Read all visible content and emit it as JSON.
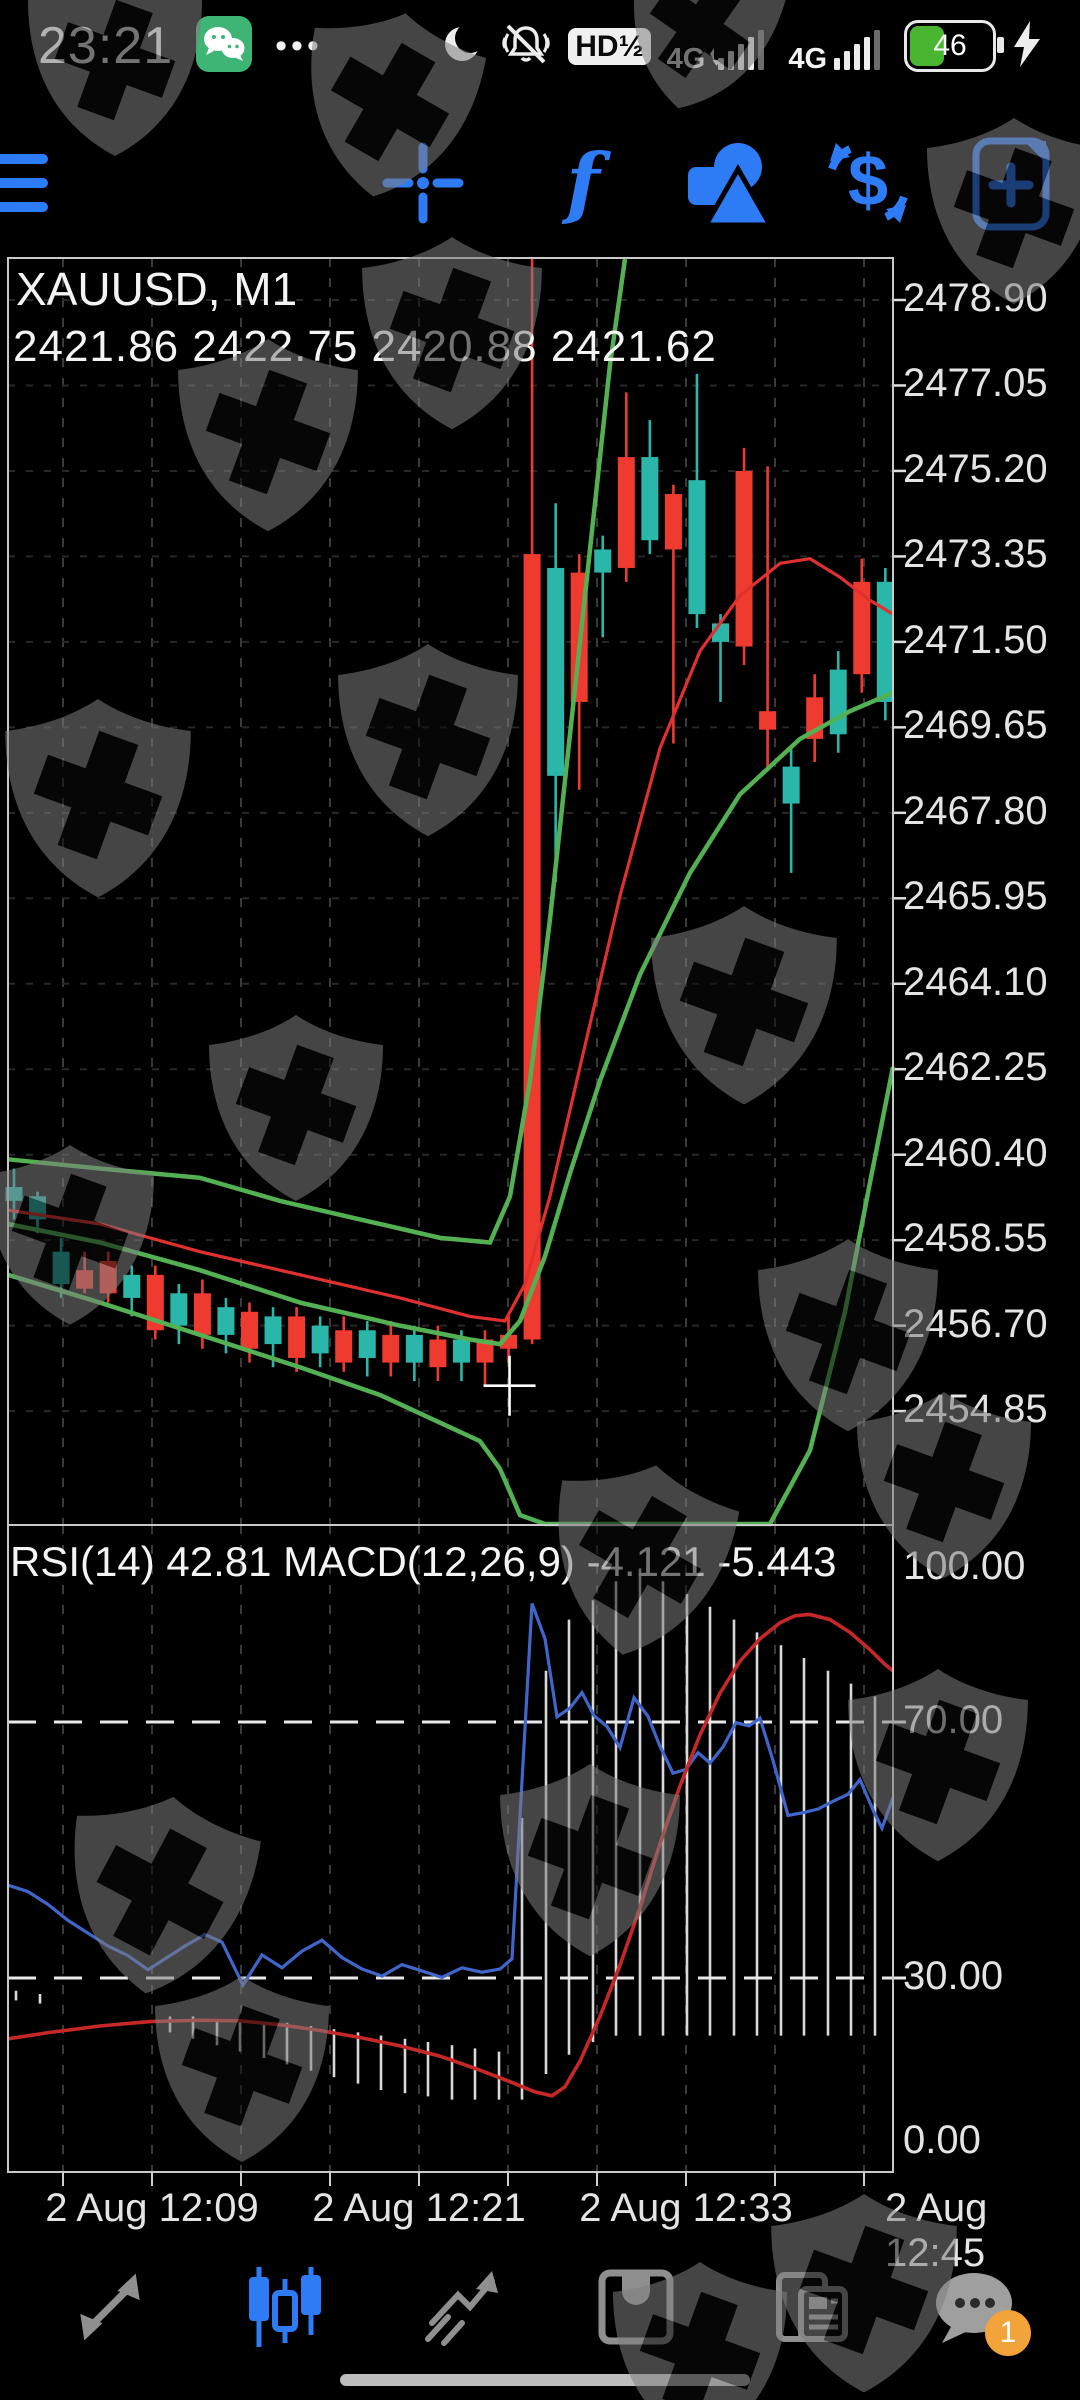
{
  "status_bar": {
    "time": "23:21",
    "dots": "•••",
    "hd_label": "HD½",
    "network": "4G",
    "network2": "4G",
    "battery_percent": "46",
    "icons": [
      "wechat-icon",
      "more-notifications-icon",
      "moon-icon",
      "mute-vibrate-icon",
      "hd-voice-icon",
      "signal-bars-icon",
      "signal-bars-icon",
      "battery-icon",
      "charging-bolt-icon"
    ]
  },
  "toolbar": {
    "icons": [
      "menu-icon",
      "crosshair-icon",
      "indicators-function-icon",
      "objects-icon",
      "currency-trade-icon",
      "new-chart-window-icon"
    ],
    "accent": "#2e7bf6"
  },
  "chart": {
    "symbol": "XAUUSD, M1",
    "ohlc_line": "2421.86 2422.75 2420.88 2421.62",
    "price_axis": [
      "2478.90",
      "2477.05",
      "2475.20",
      "2473.35",
      "2471.50",
      "2469.65",
      "2467.80",
      "2465.95",
      "2464.10",
      "2462.25",
      "2460.40",
      "2458.55",
      "2456.70",
      "2454.85"
    ],
    "time_axis": [
      "2 Aug 12:09",
      "2 Aug 12:21",
      "2 Aug 12:33",
      "2 Aug 12:45"
    ]
  },
  "indicator_panel": {
    "label": "RSI(14) 42.81 MACD(12,26,9) -4.121 -5.443",
    "levels": [
      "100.00",
      "70.00",
      "30.00",
      "0.00"
    ]
  },
  "bottom_nav": {
    "items": [
      {
        "name": "quotes",
        "active": false
      },
      {
        "name": "charts",
        "active": true
      },
      {
        "name": "trade",
        "active": false
      },
      {
        "name": "history",
        "active": false
      },
      {
        "name": "news",
        "active": false
      },
      {
        "name": "messages",
        "active": false
      }
    ],
    "badge": "1"
  },
  "colors": {
    "background": "#000000",
    "accent_blue": "#2e7bf6",
    "candle_up": "#2ab7a9",
    "candle_down": "#ef3a2f",
    "band_green": "#53b153",
    "ma_red": "#e03030",
    "rsi_blue": "#4066cc",
    "signal_red": "#c62828",
    "histogram": "#d9d9d9",
    "grid": "#3a3a3a",
    "axis_text": "#e4e4e4",
    "badge_orange": "#f2a33a",
    "battery_green": "#49b531",
    "wechat_green": "#3eb575"
  },
  "chart_data": {
    "type": "candlestick",
    "symbol": "XAUUSD",
    "timeframe": "M1",
    "title": "XAUUSD, M1",
    "ohlc_header": [
      2421.86,
      2422.75,
      2420.88,
      2421.62
    ],
    "price_axis_values": [
      2478.9,
      2477.05,
      2475.2,
      2473.35,
      2471.5,
      2469.65,
      2467.8,
      2465.95,
      2464.1,
      2462.25,
      2460.4,
      2458.55,
      2456.7,
      2454.85
    ],
    "time_labels": [
      "2 Aug 12:09",
      "2 Aug 12:21",
      "2 Aug 12:33",
      "2 Aug 12:45"
    ],
    "ylim": [
      2452.4,
      2479.8
    ],
    "grid": "dashed",
    "candles": [
      [
        2459.4,
        2460.1,
        2459.0,
        2459.7
      ],
      [
        2459.0,
        2459.6,
        2458.7,
        2459.5
      ],
      [
        2457.6,
        2458.6,
        2457.3,
        2458.3
      ],
      [
        2457.9,
        2458.3,
        2457.4,
        2457.5
      ],
      [
        2458.1,
        2458.3,
        2457.2,
        2457.4
      ],
      [
        2457.3,
        2458.0,
        2456.9,
        2457.8
      ],
      [
        2457.8,
        2458.0,
        2456.4,
        2456.6
      ],
      [
        2456.7,
        2457.6,
        2456.3,
        2457.4
      ],
      [
        2457.4,
        2457.7,
        2456.2,
        2456.5
      ],
      [
        2456.5,
        2457.3,
        2456.1,
        2457.1
      ],
      [
        2457.0,
        2457.2,
        2455.9,
        2456.2
      ],
      [
        2456.3,
        2457.1,
        2455.8,
        2456.9
      ],
      [
        2456.9,
        2457.1,
        2455.7,
        2456.0
      ],
      [
        2456.1,
        2456.9,
        2455.8,
        2456.7
      ],
      [
        2456.6,
        2456.9,
        2455.7,
        2455.9
      ],
      [
        2456.0,
        2456.8,
        2455.6,
        2456.6
      ],
      [
        2456.5,
        2456.8,
        2455.6,
        2455.9
      ],
      [
        2455.9,
        2456.7,
        2455.5,
        2456.5
      ],
      [
        2456.4,
        2456.7,
        2455.5,
        2455.8
      ],
      [
        2455.9,
        2456.6,
        2455.5,
        2456.4
      ],
      [
        2456.4,
        2456.6,
        2455.4,
        2455.9
      ],
      [
        2456.5,
        2456.9,
        2455.9,
        2456.2
      ],
      [
        2473.4,
        2480.5,
        2456.3,
        2456.4
      ],
      [
        2468.6,
        2474.5,
        2466.3,
        2473.1
      ],
      [
        2473.0,
        2473.4,
        2468.3,
        2470.2
      ],
      [
        2473.0,
        2473.8,
        2471.6,
        2473.5
      ],
      [
        2475.5,
        2476.9,
        2472.8,
        2473.1
      ],
      [
        2473.7,
        2476.3,
        2473.4,
        2475.5
      ],
      [
        2474.7,
        2474.9,
        2469.3,
        2473.5
      ],
      [
        2472.1,
        2477.3,
        2471.8,
        2475.0
      ],
      [
        2471.5,
        2472.1,
        2470.2,
        2471.9
      ],
      [
        2475.2,
        2475.7,
        2471.0,
        2471.4
      ],
      [
        2470.0,
        2475.3,
        2468.7,
        2469.6
      ],
      [
        2468.0,
        2469.2,
        2466.5,
        2468.8
      ],
      [
        2470.3,
        2470.8,
        2468.9,
        2469.4
      ],
      [
        2469.5,
        2471.3,
        2469.1,
        2470.9
      ],
      [
        2472.8,
        2473.3,
        2470.4,
        2470.8
      ],
      [
        2470.2,
        2473.1,
        2469.8,
        2472.8
      ]
    ],
    "crosshair_price": 2455.4,
    "crosshair_candle_index": 21,
    "overlays": {
      "upper_band": [
        [
          8,
          2460.3
        ],
        [
          100,
          2460.1
        ],
        [
          200,
          2459.9
        ],
        [
          280,
          2459.4
        ],
        [
          360,
          2459.0
        ],
        [
          440,
          2458.6
        ],
        [
          490,
          2458.5
        ],
        [
          510,
          2459.5
        ],
        [
          530,
          2462.0
        ],
        [
          550,
          2465.5
        ],
        [
          570,
          2469.5
        ],
        [
          590,
          2473.5
        ],
        [
          610,
          2477.5
        ],
        [
          625,
          2480.8
        ]
      ],
      "middle_band": [
        [
          8,
          2458.9
        ],
        [
          100,
          2458.5
        ],
        [
          200,
          2457.9
        ],
        [
          300,
          2457.2
        ],
        [
          400,
          2456.7
        ],
        [
          470,
          2456.4
        ],
        [
          500,
          2456.3
        ],
        [
          520,
          2456.8
        ],
        [
          545,
          2458.2
        ],
        [
          570,
          2460.0
        ],
        [
          600,
          2462.0
        ],
        [
          640,
          2464.3
        ],
        [
          690,
          2466.5
        ],
        [
          740,
          2468.2
        ],
        [
          800,
          2469.4
        ],
        [
          850,
          2470.0
        ],
        [
          893,
          2470.4
        ]
      ],
      "lower_band": [
        [
          8,
          2457.8
        ],
        [
          100,
          2457.2
        ],
        [
          200,
          2456.5
        ],
        [
          300,
          2455.8
        ],
        [
          380,
          2455.2
        ],
        [
          440,
          2454.6
        ],
        [
          480,
          2454.2
        ],
        [
          500,
          2453.6
        ],
        [
          520,
          2452.6
        ],
        [
          545,
          2452.0
        ],
        [
          580,
          2451.7
        ],
        [
          650,
          2451.6
        ],
        [
          720,
          2451.8
        ],
        [
          770,
          2452.4
        ],
        [
          810,
          2454.0
        ],
        [
          845,
          2457.0
        ],
        [
          870,
          2459.8
        ],
        [
          893,
          2462.3
        ]
      ],
      "ma_red": [
        [
          8,
          2459.2
        ],
        [
          100,
          2458.9
        ],
        [
          200,
          2458.3
        ],
        [
          300,
          2457.8
        ],
        [
          400,
          2457.3
        ],
        [
          470,
          2456.9
        ],
        [
          505,
          2456.8
        ],
        [
          525,
          2457.6
        ],
        [
          550,
          2459.5
        ],
        [
          580,
          2462.3
        ],
        [
          620,
          2466.0
        ],
        [
          660,
          2469.2
        ],
        [
          700,
          2471.3
        ],
        [
          740,
          2472.5
        ],
        [
          780,
          2473.2
        ],
        [
          810,
          2473.3
        ],
        [
          840,
          2472.9
        ],
        [
          870,
          2472.4
        ],
        [
          893,
          2472.1
        ]
      ]
    },
    "sub_chart": {
      "type": "rsi_macd",
      "label": "RSI(14) 42.81 MACD(12,26,9) -4.121 -5.443",
      "rsi_value": 42.81,
      "macd_values": [
        -4.121,
        -5.443
      ],
      "levels": [
        100,
        70,
        30,
        0
      ],
      "rsi": [
        [
          8,
          44.5
        ],
        [
          28,
          43.5
        ],
        [
          48,
          41.5
        ],
        [
          68,
          39
        ],
        [
          88,
          37
        ],
        [
          108,
          35
        ],
        [
          128,
          33.5
        ],
        [
          148,
          31.3
        ],
        [
          165,
          33
        ],
        [
          185,
          35
        ],
        [
          205,
          36.8
        ],
        [
          222,
          35.6
        ],
        [
          243,
          28.9
        ],
        [
          262,
          33.6
        ],
        [
          282,
          31.6
        ],
        [
          302,
          34.2
        ],
        [
          322,
          35.9
        ],
        [
          342,
          33.2
        ],
        [
          362,
          31.4
        ],
        [
          382,
          30.3
        ],
        [
          402,
          32.1
        ],
        [
          422,
          31.1
        ],
        [
          442,
          30.1
        ],
        [
          462,
          31.6
        ],
        [
          482,
          30.9
        ],
        [
          500,
          31.4
        ],
        [
          512,
          33
        ],
        [
          532,
          88.5
        ],
        [
          545,
          83
        ],
        [
          557,
          70.8
        ],
        [
          570,
          72.2
        ],
        [
          582,
          74.6
        ],
        [
          594,
          71
        ],
        [
          607,
          69.3
        ],
        [
          620,
          66
        ],
        [
          634,
          73.8
        ],
        [
          648,
          70.9
        ],
        [
          660,
          66.2
        ],
        [
          673,
          62
        ],
        [
          686,
          62.6
        ],
        [
          698,
          65.2
        ],
        [
          710,
          63.6
        ],
        [
          723,
          66.1
        ],
        [
          736,
          69.9
        ],
        [
          749,
          69.4
        ],
        [
          760,
          70.6
        ],
        [
          773,
          64
        ],
        [
          788,
          55.4
        ],
        [
          802,
          55.8
        ],
        [
          818,
          56.4
        ],
        [
          833,
          57.6
        ],
        [
          848,
          58.7
        ],
        [
          860,
          61
        ],
        [
          874,
          55.9
        ],
        [
          882,
          53.4
        ],
        [
          893,
          58.2
        ]
      ],
      "signal": [
        [
          8,
          20.5
        ],
        [
          50,
          21.5
        ],
        [
          100,
          22.5
        ],
        [
          150,
          23.2
        ],
        [
          200,
          23.4
        ],
        [
          240,
          23.3
        ],
        [
          280,
          22.7
        ],
        [
          320,
          21.8
        ],
        [
          360,
          20.7
        ],
        [
          400,
          19.4
        ],
        [
          440,
          17.8
        ],
        [
          480,
          15.6
        ],
        [
          510,
          13.8
        ],
        [
          535,
          12.2
        ],
        [
          552,
          11.6
        ],
        [
          565,
          13
        ],
        [
          580,
          17
        ],
        [
          600,
          24
        ],
        [
          620,
          32
        ],
        [
          640,
          41
        ],
        [
          660,
          51
        ],
        [
          680,
          60
        ],
        [
          700,
          68
        ],
        [
          720,
          74.5
        ],
        [
          740,
          79.5
        ],
        [
          760,
          83
        ],
        [
          780,
          85.5
        ],
        [
          795,
          86.6
        ],
        [
          810,
          86.8
        ],
        [
          830,
          86
        ],
        [
          850,
          84
        ],
        [
          870,
          81.3
        ],
        [
          885,
          79
        ],
        [
          893,
          78
        ]
      ],
      "histogram": [
        [
          16,
          28,
          26.5
        ],
        [
          40,
          27.5,
          26
        ],
        [
          170,
          24,
          21.5
        ],
        [
          193,
          24,
          20.5
        ],
        [
          217,
          23.5,
          19.5
        ],
        [
          240,
          23.5,
          18.5
        ],
        [
          264,
          23,
          17.5
        ],
        [
          287,
          23,
          16.5
        ],
        [
          311,
          22.5,
          15.5
        ],
        [
          334,
          22,
          14.5
        ],
        [
          358,
          21.5,
          13.5
        ],
        [
          381,
          21,
          12.5
        ],
        [
          405,
          20.5,
          12
        ],
        [
          428,
          20,
          11.5
        ],
        [
          452,
          19.5,
          11
        ],
        [
          475,
          19,
          11
        ],
        [
          499,
          18.5,
          11
        ],
        [
          522,
          55,
          11
        ],
        [
          546,
          78,
          15
        ],
        [
          569,
          86,
          18
        ],
        [
          593,
          89,
          20
        ],
        [
          616,
          92,
          21
        ],
        [
          640,
          94,
          21
        ],
        [
          663,
          92,
          21
        ],
        [
          687,
          90,
          21
        ],
        [
          710,
          88,
          21
        ],
        [
          734,
          86,
          21
        ],
        [
          757,
          84,
          21
        ],
        [
          781,
          82,
          21
        ],
        [
          804,
          80,
          21
        ],
        [
          828,
          78,
          21
        ],
        [
          851,
          76,
          21
        ],
        [
          875,
          74,
          21
        ]
      ]
    }
  }
}
